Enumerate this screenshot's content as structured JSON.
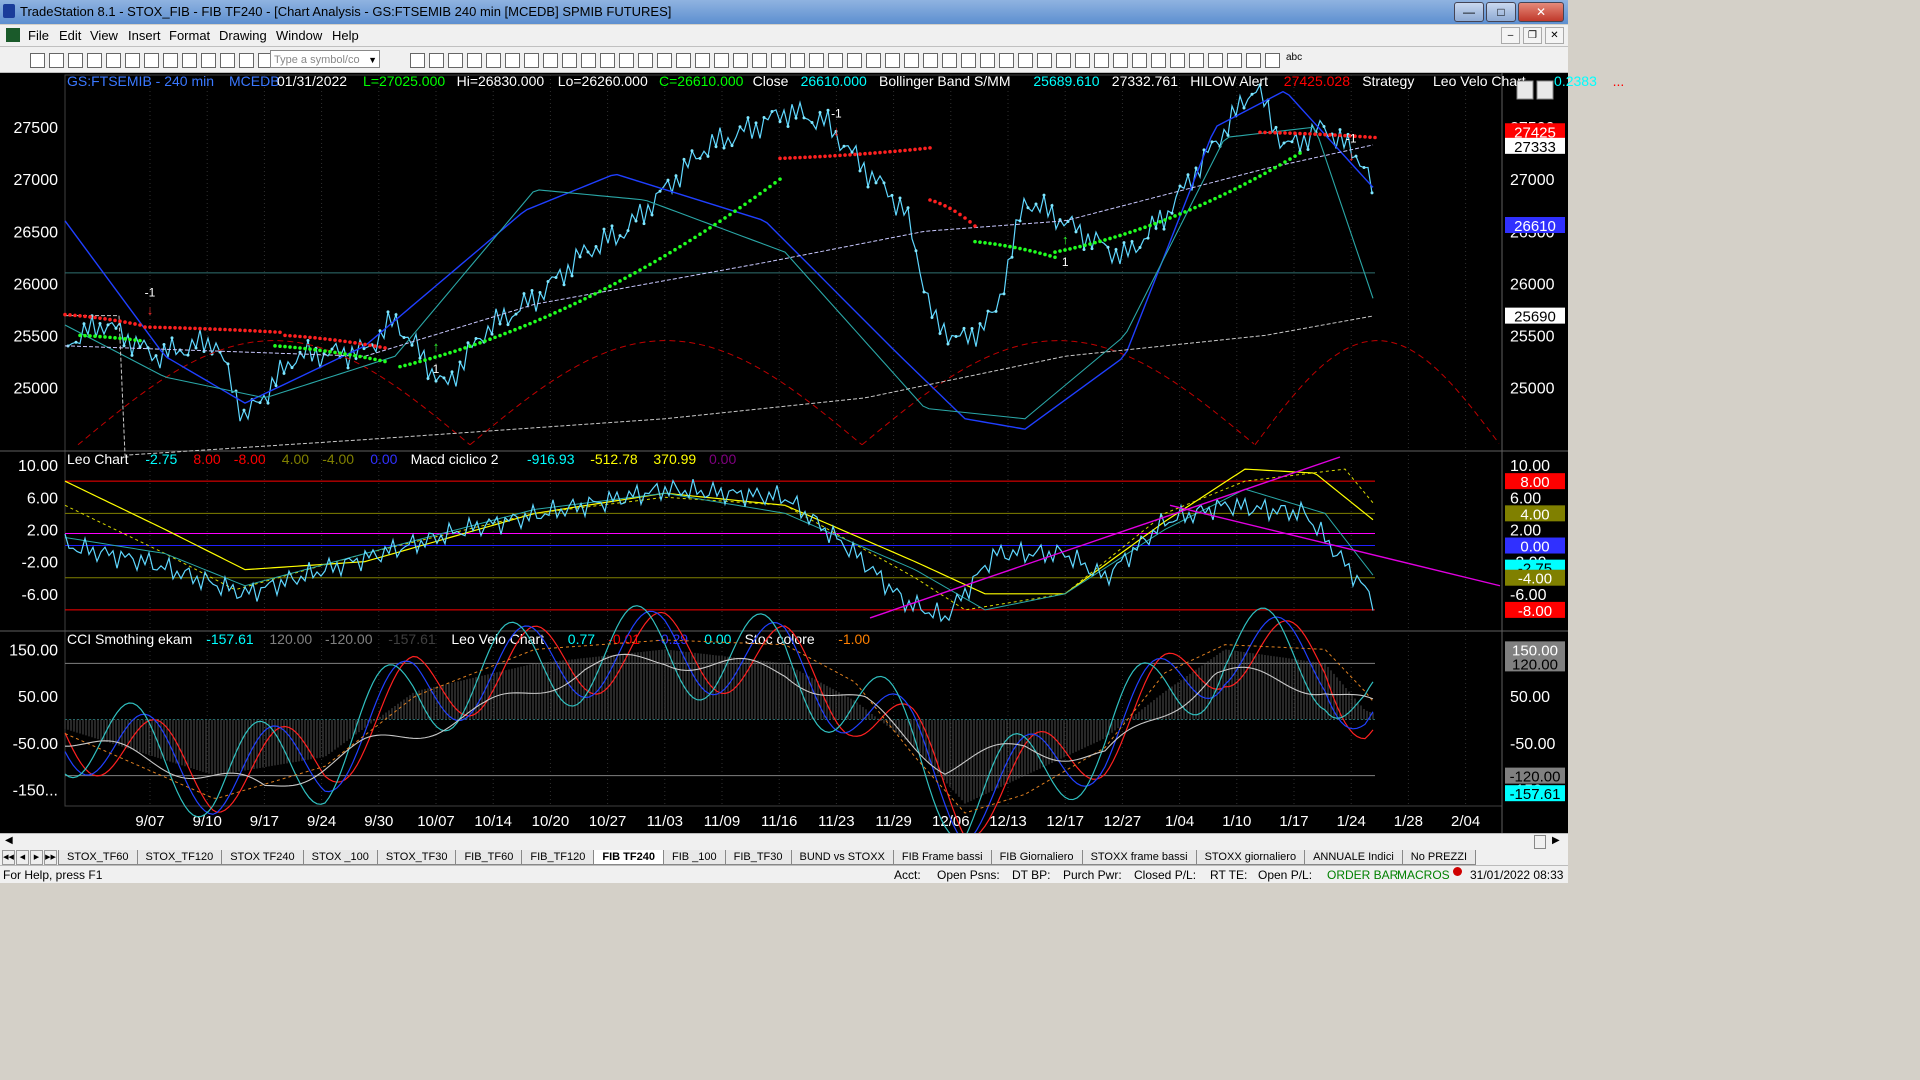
{
  "window": {
    "title": "TradeStation 8.1 - STOX_FIB - FIB TF240 - [Chart Analysis - GS:FTSEMIB  240 min  [MCEDB] SPMIB FUTURES]"
  },
  "menu": [
    "File",
    "Edit",
    "View",
    "Insert",
    "Format",
    "Drawing",
    "Window",
    "Help"
  ],
  "toolbar": {
    "symbol_placeholder": "Type a symbol/co",
    "text_tool": "abc"
  },
  "price_panel": {
    "header": [
      {
        "t": "GS:FTSEMIB - 240 min",
        "c": "#3a78ff"
      },
      {
        "t": "MCEDB",
        "c": "#3a78ff"
      },
      {
        "t": "01/31/2022",
        "c": "#ffffff"
      },
      {
        "t": "L=27025.000",
        "c": "#00ff00"
      },
      {
        "t": "Hi=26830.000",
        "c": "#ffffff"
      },
      {
        "t": "Lo=26260.000",
        "c": "#ffffff"
      },
      {
        "t": "C=26610.000",
        "c": "#00ff00"
      },
      {
        "t": "Close",
        "c": "#ffffff"
      },
      {
        "t": "26610.000",
        "c": "#00ffff"
      },
      {
        "t": "Bollinger Band S/MM",
        "c": "#ffffff"
      },
      {
        "t": "25689.610",
        "c": "#00ffff"
      },
      {
        "t": "27332.761",
        "c": "#ffffff"
      },
      {
        "t": "HILOW Alert",
        "c": "#ffffff"
      },
      {
        "t": "27425.028",
        "c": "#ff0000"
      },
      {
        "t": "Strategy",
        "c": "#ffffff"
      },
      {
        "t": "Leo Velo Chart",
        "c": "#ffffff"
      },
      {
        "t": "-0.2383",
        "c": "#00ffff"
      },
      {
        "t": "...",
        "c": "#ff0000"
      }
    ],
    "y_ticks": [
      27500,
      27000,
      26500,
      26000,
      25500,
      25000
    ],
    "y_range": [
      24400,
      28000
    ],
    "markers": [
      {
        "label": "-1",
        "dir": "down",
        "x": "9/07",
        "y": 25700
      },
      {
        "label": "1",
        "dir": "up",
        "x": "10/07",
        "y": 25350
      },
      {
        "label": "-1",
        "dir": "down",
        "x": "11/23",
        "y": 27420
      },
      {
        "label": "1",
        "dir": "up",
        "x": "12/17",
        "y": 26380
      },
      {
        "label": "-1",
        "dir": "down",
        "x": "1/24",
        "y": 27180
      }
    ],
    "badges": [
      {
        "text": "27425",
        "bg": "#ff0000",
        "fg": "#ffffff",
        "v": 27460
      },
      {
        "text": "27333",
        "bg": "#ffffff",
        "fg": "#000000",
        "v": 27320
      },
      {
        "text": "26610",
        "bg": "#3030ff",
        "fg": "#ffffff",
        "v": 26560
      },
      {
        "text": "25690",
        "bg": "#ffffff",
        "fg": "#000000",
        "v": 25690
      }
    ]
  },
  "leo_panel": {
    "header": [
      {
        "t": "Leo Chart",
        "c": "#ffffff"
      },
      {
        "t": "-2.75",
        "c": "#00ffff"
      },
      {
        "t": "8.00",
        "c": "#ff0000"
      },
      {
        "t": "-8.00",
        "c": "#ff0000"
      },
      {
        "t": "4.00",
        "c": "#808000"
      },
      {
        "t": "-4.00",
        "c": "#808000"
      },
      {
        "t": "0.00",
        "c": "#3030ff"
      },
      {
        "t": "Macd ciclico 2",
        "c": "#ffffff"
      },
      {
        "t": "-916.93",
        "c": "#00ffff"
      },
      {
        "t": "-512.78",
        "c": "#ffff00"
      },
      {
        "t": "370.99",
        "c": "#ffff00"
      },
      {
        "t": "0.00",
        "c": "#800080"
      }
    ],
    "y_ticks": [
      "10.00",
      "6.00",
      "2.00",
      "-2.00",
      "-6.00"
    ],
    "y_range": [
      -10.5,
      11.5
    ],
    "badges": [
      {
        "text": "8.00",
        "bg": "#ff0000",
        "fg": "#ffffff",
        "v": 8
      },
      {
        "text": "4.00",
        "bg": "#808000",
        "fg": "#ffffff",
        "v": 4
      },
      {
        "text": "0.00",
        "bg": "#3030ff",
        "fg": "#ffffff",
        "v": 0
      },
      {
        "text": "-2.75",
        "bg": "#00ffff",
        "fg": "#000000",
        "v": -2.75
      },
      {
        "text": "-4.00",
        "bg": "#808000",
        "fg": "#ffffff",
        "v": -4
      },
      {
        "text": "-8.00",
        "bg": "#ff0000",
        "fg": "#ffffff",
        "v": -8
      }
    ]
  },
  "cci_panel": {
    "header": [
      {
        "t": "CCI Smothing ekam",
        "c": "#ffffff"
      },
      {
        "t": "-157.61",
        "c": "#00ffff"
      },
      {
        "t": "120.00",
        "c": "#808080"
      },
      {
        "t": "-120.00",
        "c": "#808080"
      },
      {
        "t": "-157.61",
        "c": "#404040"
      },
      {
        "t": "Leo Velo Chart",
        "c": "#ffffff"
      },
      {
        "t": "0.77",
        "c": "#00ffff"
      },
      {
        "t": "-0.01",
        "c": "#ff0000"
      },
      {
        "t": "-0.29",
        "c": "#3030ff"
      },
      {
        "t": "0.00",
        "c": "#00ffff"
      },
      {
        "t": "Stoc colore",
        "c": "#ffffff"
      },
      {
        "t": "-1.00",
        "c": "#ff8000"
      }
    ],
    "y_ticks": [
      "150.00",
      "50.00",
      "-50.00",
      "-150..."
    ],
    "y_range": [
      -185,
      185
    ],
    "badges": [
      {
        "text": "150.00",
        "bg": "#808080",
        "fg": "#ffffff",
        "v": 150
      },
      {
        "text": "120.00",
        "bg": "#808080",
        "fg": "#000000",
        "v": 120
      },
      {
        "text": "-120.00",
        "bg": "#808080",
        "fg": "#000000",
        "v": -120
      },
      {
        "text": "-157.61",
        "bg": "#00ffff",
        "fg": "#000000",
        "v": -157.61
      }
    ]
  },
  "x_ticks": [
    "9/07",
    "9/10",
    "9/17",
    "9/24",
    "9/30",
    "10/07",
    "10/14",
    "10/20",
    "10/27",
    "11/03",
    "11/09",
    "11/16",
    "11/23",
    "11/29",
    "12/06",
    "12/13",
    "12/17",
    "12/27",
    "1/04",
    "1/10",
    "1/17",
    "1/24",
    "1/28",
    "2/04"
  ],
  "tabs": [
    "STOX_TF60",
    "STOX_TF120",
    "STOX TF240",
    "STOX _100",
    "STOX_TF30",
    "FIB_TF60",
    "FIB_TF120",
    "FIB TF240",
    "FIB _100",
    "FIB_TF30",
    "BUND vs STOXX",
    "FIB Frame bassi",
    "FIB Giornaliero",
    "STOXX frame bassi",
    "STOXX giornaliero",
    "ANNUALE Indici",
    "No PREZZI"
  ],
  "active_tab": "FIB TF240",
  "status": {
    "help": "For Help, press F1",
    "acct": "Acct:",
    "open_psns": "Open Psns:",
    "dt_bp": "DT BP:",
    "purch_pwr": "Purch Pwr:",
    "closed_pl": "Closed P/L:",
    "rt_te": "RT TE:",
    "open_pl": "Open P/L:",
    "order_bar": "ORDER BAR",
    "macros": "MACROS",
    "datetime": "31/01/2022 08:33"
  }
}
